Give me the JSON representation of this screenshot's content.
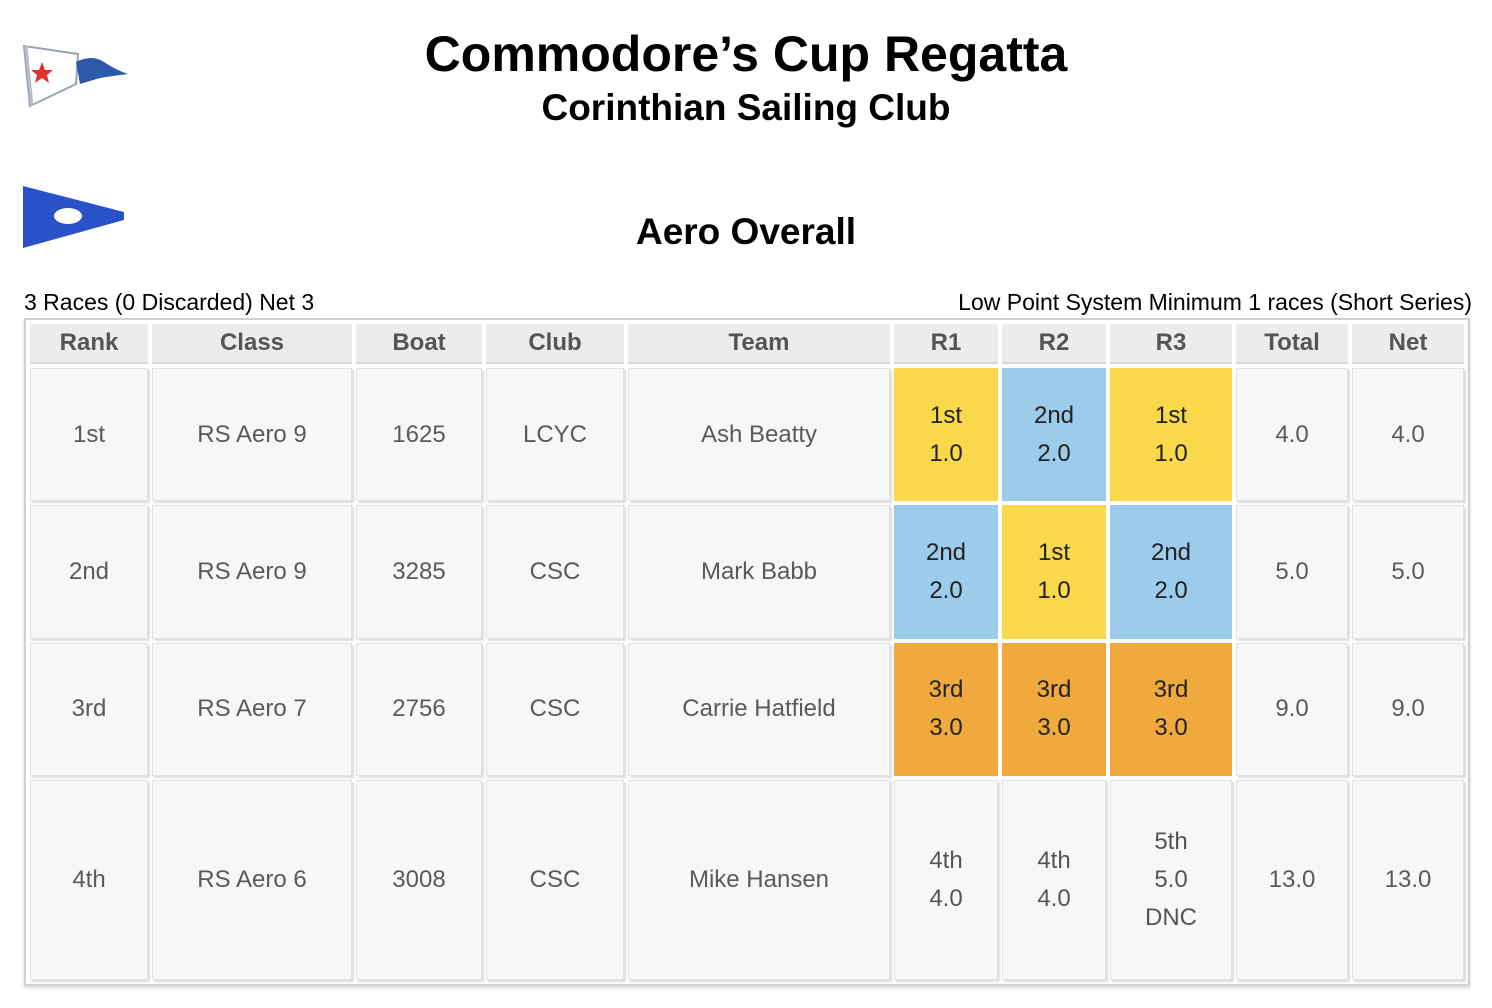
{
  "header": {
    "event_title": "Commodore’s Cup Regatta",
    "club_name": "Corinthian Sailing Club",
    "series_title": "Aero Overall"
  },
  "summary": {
    "left": "3 Races (0 Discarded) Net 3",
    "right": "Low Point System Minimum 1 races (Short Series)"
  },
  "colors": {
    "first_place": "#f9d84b",
    "second_place": "#9dcbea",
    "third_place": "#f0a93c",
    "club_burgee_blue": "#2c5aa8",
    "club_burgee_star": "#e0322c",
    "class_burgee_blue": "#2a52c8"
  },
  "icons": {
    "club_burgee": "club-burgee-icon",
    "class_burgee": "class-burgee-icon"
  },
  "table": {
    "columns": [
      "Rank",
      "Class",
      "Boat",
      "Club",
      "Team",
      "R1",
      "R2",
      "R3",
      "Total",
      "Net"
    ],
    "rows": [
      {
        "rank": "1st",
        "class": "RS Aero 9",
        "boat": "1625",
        "club": "LCYC",
        "team": "Ash Beatty",
        "races": [
          {
            "place": "1st",
            "points": "1.0",
            "code": ""
          },
          {
            "place": "2nd",
            "points": "2.0",
            "code": ""
          },
          {
            "place": "1st",
            "points": "1.0",
            "code": ""
          }
        ],
        "total": "4.0",
        "net": "4.0"
      },
      {
        "rank": "2nd",
        "class": "RS Aero 9",
        "boat": "3285",
        "club": "CSC",
        "team": "Mark Babb",
        "races": [
          {
            "place": "2nd",
            "points": "2.0",
            "code": ""
          },
          {
            "place": "1st",
            "points": "1.0",
            "code": ""
          },
          {
            "place": "2nd",
            "points": "2.0",
            "code": ""
          }
        ],
        "total": "5.0",
        "net": "5.0"
      },
      {
        "rank": "3rd",
        "class": "RS Aero 7",
        "boat": "2756",
        "club": "CSC",
        "team": "Carrie Hatfield",
        "races": [
          {
            "place": "3rd",
            "points": "3.0",
            "code": ""
          },
          {
            "place": "3rd",
            "points": "3.0",
            "code": ""
          },
          {
            "place": "3rd",
            "points": "3.0",
            "code": ""
          }
        ],
        "total": "9.0",
        "net": "9.0"
      },
      {
        "rank": "4th",
        "class": "RS Aero 6",
        "boat": "3008",
        "club": "CSC",
        "team": "Mike Hansen",
        "races": [
          {
            "place": "4th",
            "points": "4.0",
            "code": ""
          },
          {
            "place": "4th",
            "points": "4.0",
            "code": ""
          },
          {
            "place": "5th",
            "points": "5.0",
            "code": "DNC"
          }
        ],
        "total": "13.0",
        "net": "13.0"
      }
    ]
  }
}
